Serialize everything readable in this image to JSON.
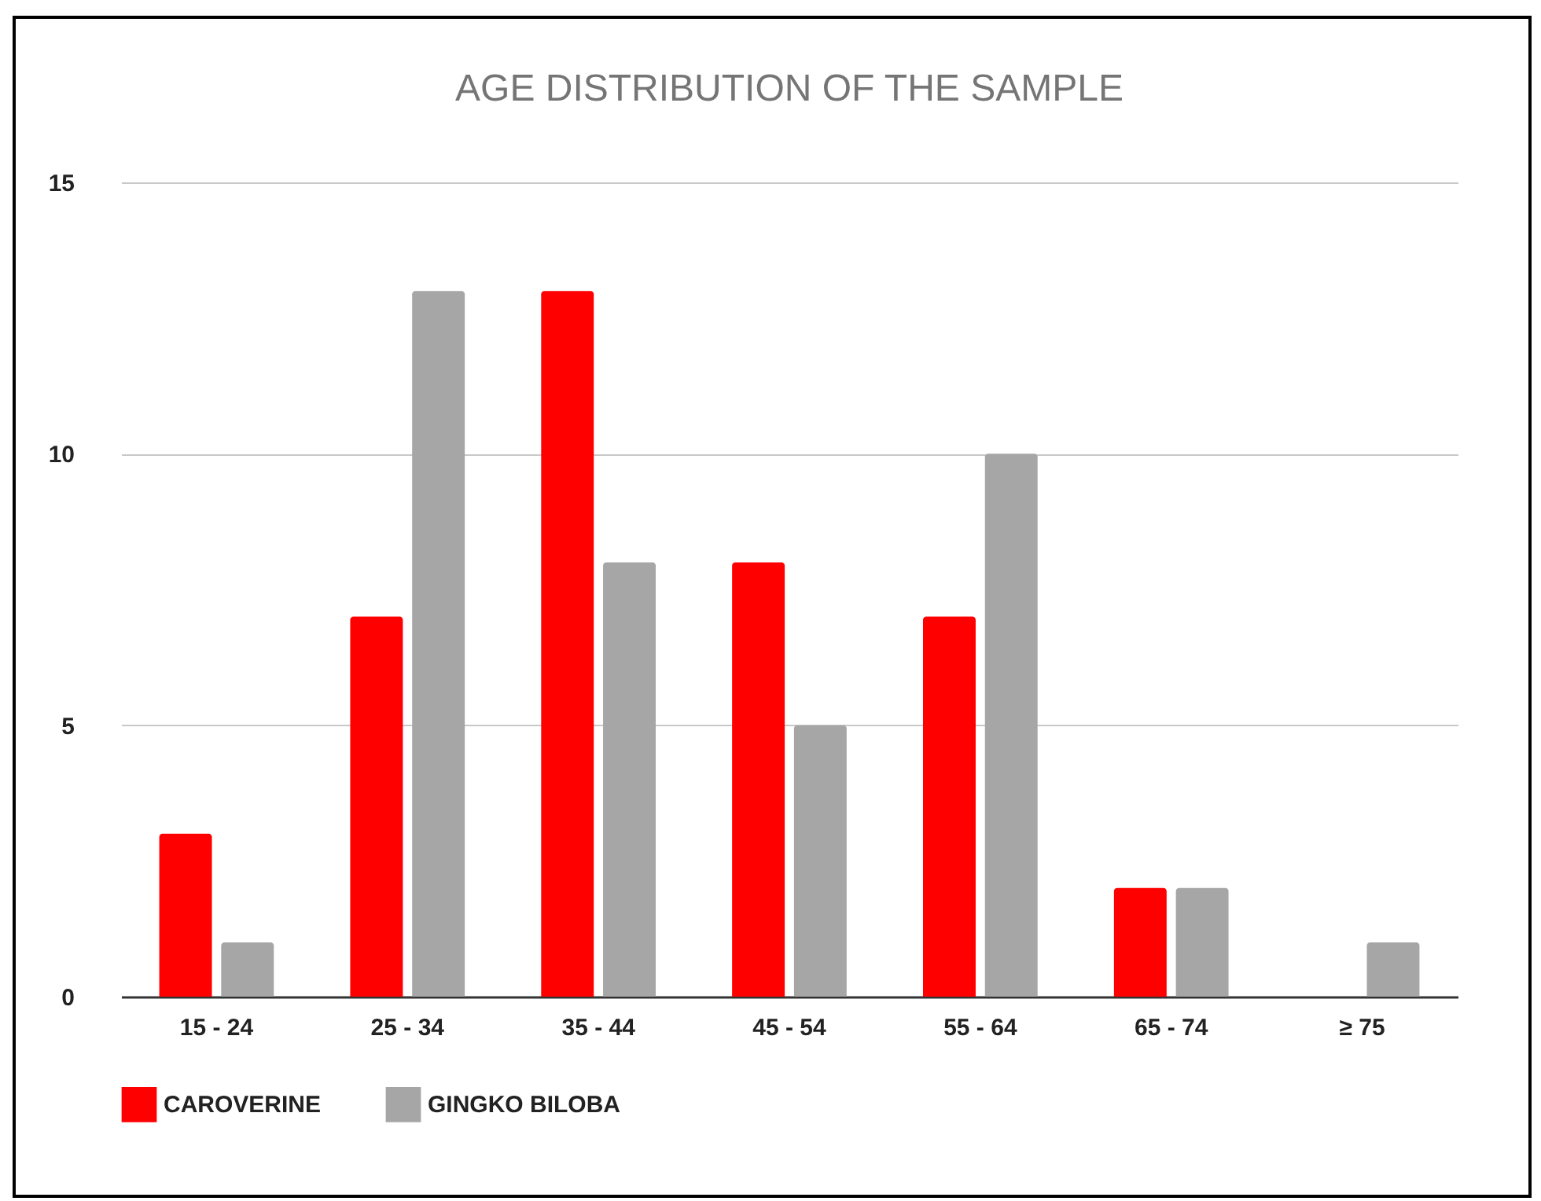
{
  "chart_data": {
    "type": "bar",
    "title": "AGE DISTRIBUTION OF THE SAMPLE",
    "categories": [
      "15 - 24",
      "25 - 34",
      "35 - 44",
      "45 - 54",
      "55 - 64",
      "65 - 74",
      "≥ 75"
    ],
    "series": [
      {
        "name": "CAROVERINE",
        "color": "#ff0000",
        "values": [
          3,
          7,
          13,
          8,
          7,
          2,
          0
        ]
      },
      {
        "name": "GINGKO BILOBA",
        "color": "#a6a6a6",
        "values": [
          1,
          13,
          8,
          5,
          10,
          2,
          1
        ]
      }
    ],
    "ylim": [
      0,
      15
    ],
    "yticks": [
      0,
      5,
      10,
      15
    ],
    "grid": "y",
    "legend": "bottom"
  }
}
